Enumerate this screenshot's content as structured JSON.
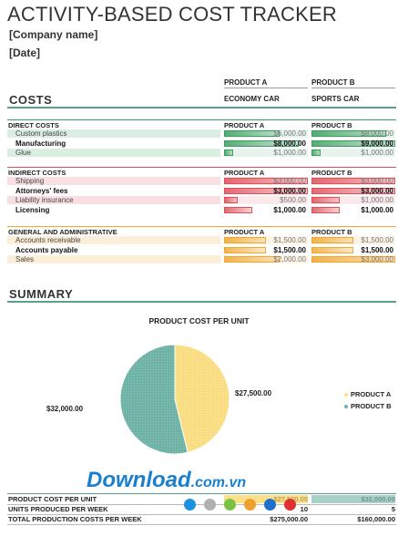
{
  "header": {
    "title": "ACTIVITY-BASED COST TRACKER",
    "company": "[Company name]",
    "date": "[Date]"
  },
  "product_header": {
    "product_a": "PRODUCT A",
    "product_b": "PRODUCT B",
    "product_a_name": "ECONOMY CAR",
    "product_b_name": "SPORTS CAR"
  },
  "costs_title": "COSTS",
  "sections": [
    {
      "name": "DIRECT COSTS",
      "col_a": "PRODUCT A",
      "col_b": "PRODUCT B",
      "color": "#3a9e5f",
      "rows": [
        {
          "label": "Custom plastics",
          "a": "$6,000.00",
          "b": "$8,000.00",
          "a_num": 6000,
          "b_num": 8000
        },
        {
          "label": "Manufacturing",
          "a": "$8,000.00",
          "b": "$9,000.00",
          "a_num": 8000,
          "b_num": 9000
        },
        {
          "label": "Glue",
          "a": "$1,000.00",
          "b": "$1,000.00",
          "a_num": 1000,
          "b_num": 1000
        }
      ]
    },
    {
      "name": "INDIRECT COSTS",
      "col_a": "PRODUCT A",
      "col_b": "PRODUCT B",
      "color": "#e0505a",
      "rows": [
        {
          "label": "Shipping",
          "a": "$3,000.00",
          "b": "$3,000.00",
          "a_num": 3000,
          "b_num": 3000
        },
        {
          "label": "Attorneys' fees",
          "a": "$3,000.00",
          "b": "$3,000.00",
          "a_num": 3000,
          "b_num": 3000
        },
        {
          "label": "Liability insurance",
          "a": "$500.00",
          "b": "$1,000.00",
          "a_num": 500,
          "b_num": 1000
        },
        {
          "label": "Licensing",
          "a": "$1,000.00",
          "b": "$1,000.00",
          "a_num": 1000,
          "b_num": 1000
        }
      ]
    },
    {
      "name": "GENERAL AND ADMINISTRATIVE",
      "col_a": "PRODUCT A",
      "col_b": "PRODUCT B",
      "color": "#f0a830",
      "rows": [
        {
          "label": "Accounts receivable",
          "a": "$1,500.00",
          "b": "$1,500.00",
          "a_num": 1500,
          "b_num": 1500
        },
        {
          "label": "Accounts payable",
          "a": "$1,500.00",
          "b": "$1,500.00",
          "a_num": 1500,
          "b_num": 1500
        },
        {
          "label": "Sales",
          "a": "$2,000.00",
          "b": "$3,000.00",
          "a_num": 2000,
          "b_num": 3000
        }
      ]
    }
  ],
  "summary_title": "SUMMARY",
  "chart_data": {
    "type": "pie",
    "title": "PRODUCT COST PER UNIT",
    "labels": [
      "PRODUCT A",
      "PRODUCT B"
    ],
    "values": [
      27500,
      32000
    ],
    "value_labels": [
      "$27,500.00",
      "$32,000.00"
    ],
    "colors": [
      "#fbe08a",
      "#6fb3a6"
    ],
    "legend": "right"
  },
  "summary_rows": [
    {
      "label": "PRODUCT COST PER UNIT",
      "a": "$27,500.00",
      "b": "$32,000.00"
    },
    {
      "label": "UNITS PRODUCED PER WEEK",
      "a": "10",
      "b": "5"
    },
    {
      "label": "TOTAL PRODUCTION COSTS PER WEEK",
      "a": "$275,000.00",
      "b": "$160,000.00"
    }
  ],
  "watermark": {
    "text": "Download",
    "suffix": ".com.vn",
    "dot_colors": [
      "#1e90e0",
      "#b0b0b0",
      "#7cc242",
      "#f0a030",
      "#1e6fd0",
      "#e03030"
    ]
  }
}
